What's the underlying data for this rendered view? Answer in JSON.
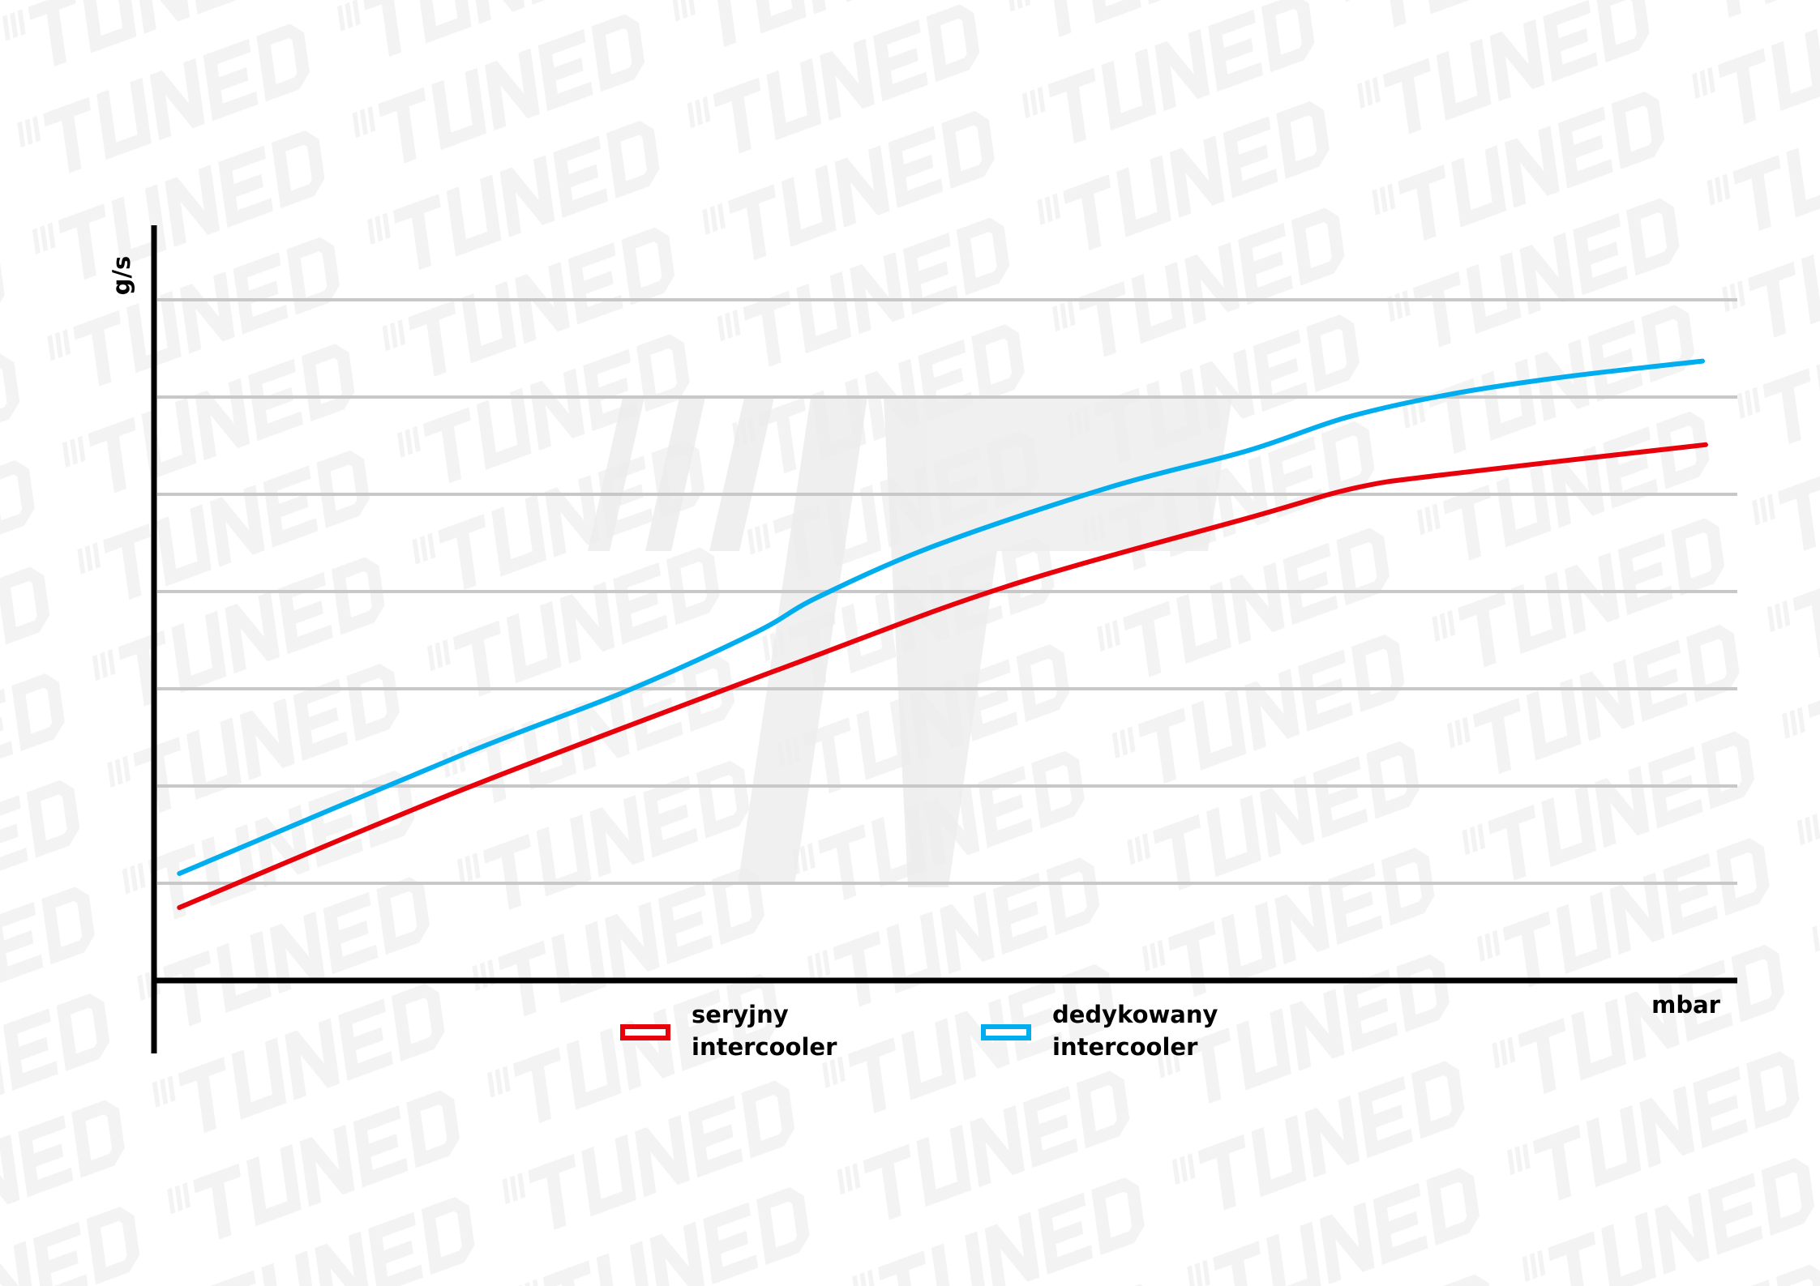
{
  "watermark": "\"TUNED",
  "chart_data": {
    "type": "line",
    "title": "",
    "xlabel": "mbar",
    "ylabel": "g/s",
    "xlim": [
      0,
      100
    ],
    "ylim": [
      0,
      7.5
    ],
    "grid": true,
    "gridlines_y": [
      1,
      2,
      3,
      4,
      5,
      6,
      7
    ],
    "tick_labels_shown": false,
    "legend": "bottom-center",
    "series": [
      {
        "name": "seryjny intercooler",
        "legend_lines": [
          "seryjny",
          "intercooler"
        ],
        "color": "#e8000b",
        "x": [
          1.6,
          19.6,
          40.8,
          54,
          69.4,
          76,
          81.9,
          98
        ],
        "y": [
          0.75,
          1.97,
          3.28,
          4.06,
          4.77,
          5.07,
          5.21,
          5.51
        ]
      },
      {
        "name": "dedykowany intercooler",
        "legend_lines": [
          "dedykowany",
          "intercooler"
        ],
        "color": "#00aeef",
        "x": [
          1.6,
          19.6,
          29.9,
          38,
          41.9,
          49.3,
          60.3,
          69.1,
          75.3,
          81.9,
          89.2,
          97.8
        ],
        "y": [
          1.1,
          2.33,
          2.98,
          3.58,
          3.94,
          4.47,
          5.07,
          5.45,
          5.79,
          6.03,
          6.21,
          6.37
        ]
      }
    ]
  }
}
